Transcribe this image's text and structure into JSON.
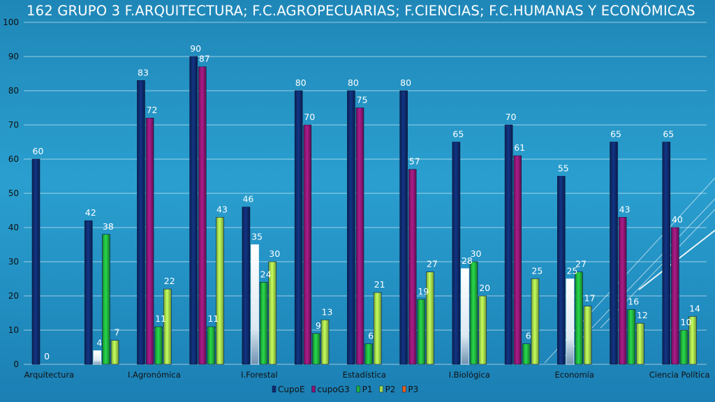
{
  "chart_data": {
    "type": "bar",
    "title": "162  GRUPO 3  F.ARQUITECTURA;  F.C.AGROPECUARIAS;  F.CIENCIAS;  F.C.HUMANAS Y ECONÓMICAS",
    "categories": [
      "Arquitectura",
      "",
      "I.Agronómica",
      "",
      "I.Forestal",
      "",
      "Estadística",
      "",
      "I.Biológica",
      "",
      "Economía",
      "",
      "Ciencia Política"
    ],
    "series": [
      {
        "name": "CupoE",
        "color": "#0e2a6b",
        "values": [
          60,
          42,
          83,
          90,
          46,
          80,
          80,
          80,
          65,
          70,
          55,
          65,
          65
        ]
      },
      {
        "name": "cupoG3",
        "color": "#8a1670",
        "values": [
          0,
          4,
          72,
          87,
          35,
          70,
          75,
          57,
          28,
          61,
          25,
          43,
          40
        ]
      },
      {
        "name": "P1",
        "color": "#1fae3c",
        "values": [
          null,
          38,
          11,
          11,
          24,
          9,
          6,
          19,
          30,
          6,
          27,
          16,
          10
        ]
      },
      {
        "name": "P2",
        "color": "#9ed94a",
        "values": [
          null,
          7,
          22,
          43,
          30,
          13,
          21,
          27,
          20,
          25,
          17,
          12,
          14
        ]
      },
      {
        "name": "P3",
        "color": "#e8601c",
        "values": [
          null,
          null,
          null,
          null,
          null,
          null,
          null,
          null,
          null,
          null,
          null,
          null,
          null
        ]
      }
    ],
    "highlight_color": "#ffffff",
    "ylim": [
      0,
      100
    ],
    "yticks": [
      0,
      10,
      20,
      30,
      40,
      50,
      60,
      70,
      80,
      90,
      100
    ],
    "grid": true,
    "legend": "bottom"
  }
}
